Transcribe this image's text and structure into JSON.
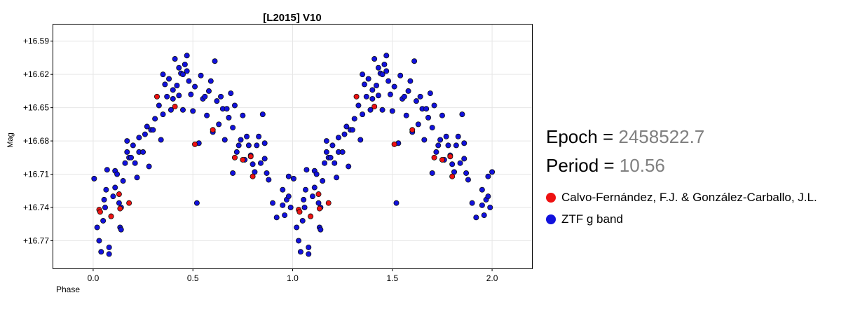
{
  "chart_data": {
    "type": "scatter",
    "title": "[L2015] V10",
    "xlabel": "Phase",
    "ylabel": "Mag",
    "xlim": [
      -0.2,
      2.2
    ],
    "ylim": [
      16.795,
      16.575
    ],
    "y_inverted": true,
    "grid": true,
    "x_ticks": [
      0.0,
      0.5,
      1.0,
      1.5,
      2.0
    ],
    "x_tick_labels": [
      "0.0",
      "0.5",
      "1.0",
      "1.5",
      "2.0"
    ],
    "y_ticks": [
      16.59,
      16.62,
      16.65,
      16.68,
      16.71,
      16.74,
      16.77
    ],
    "y_tick_labels": [
      "+16.59",
      "+16.62",
      "+16.65",
      "+16.68",
      "+16.71",
      "+16.74",
      "+16.77"
    ],
    "legend_position": "right",
    "series": [
      {
        "name": "Calvo-Fernández, F.J. & González-Carballo, J.L.",
        "color": "#ee1111",
        "points": [
          [
            0.03,
            16.742
          ],
          [
            0.035,
            16.744
          ],
          [
            0.09,
            16.748
          ],
          [
            0.13,
            16.728
          ],
          [
            0.135,
            16.741
          ],
          [
            0.18,
            16.736
          ],
          [
            0.32,
            16.64
          ],
          [
            0.41,
            16.649
          ],
          [
            0.51,
            16.683
          ],
          [
            0.6,
            16.67
          ],
          [
            0.71,
            16.695
          ],
          [
            0.75,
            16.697
          ],
          [
            0.79,
            16.694
          ],
          [
            0.8,
            16.712
          ],
          [
            1.03,
            16.742
          ],
          [
            1.035,
            16.744
          ],
          [
            1.09,
            16.748
          ],
          [
            1.13,
            16.728
          ],
          [
            1.135,
            16.741
          ],
          [
            1.18,
            16.736
          ],
          [
            1.32,
            16.64
          ],
          [
            1.41,
            16.649
          ],
          [
            1.51,
            16.683
          ],
          [
            1.6,
            16.67
          ],
          [
            1.71,
            16.695
          ],
          [
            1.75,
            16.697
          ],
          [
            1.79,
            16.694
          ],
          [
            1.8,
            16.712
          ]
        ]
      },
      {
        "name": "ZTF g band",
        "color": "#1111dd",
        "points": [
          [
            0.005,
            16.714
          ],
          [
            0.02,
            16.758
          ],
          [
            0.03,
            16.77
          ],
          [
            0.04,
            16.78
          ],
          [
            0.05,
            16.752
          ],
          [
            0.055,
            16.733
          ],
          [
            0.06,
            16.74
          ],
          [
            0.065,
            16.724
          ],
          [
            0.07,
            16.706
          ],
          [
            0.08,
            16.776
          ],
          [
            0.08,
            16.782
          ],
          [
            0.09,
            16.748
          ],
          [
            0.1,
            16.73
          ],
          [
            0.11,
            16.722
          ],
          [
            0.11,
            16.707
          ],
          [
            0.12,
            16.71
          ],
          [
            0.13,
            16.736
          ],
          [
            0.135,
            16.758
          ],
          [
            0.14,
            16.76
          ],
          [
            0.14,
            16.74
          ],
          [
            0.15,
            16.716
          ],
          [
            0.16,
            16.7
          ],
          [
            0.17,
            16.68
          ],
          [
            0.17,
            16.69
          ],
          [
            0.18,
            16.695
          ],
          [
            0.19,
            16.695
          ],
          [
            0.2,
            16.684
          ],
          [
            0.21,
            16.7
          ],
          [
            0.22,
            16.713
          ],
          [
            0.23,
            16.677
          ],
          [
            0.23,
            16.69
          ],
          [
            0.25,
            16.69
          ],
          [
            0.26,
            16.674
          ],
          [
            0.27,
            16.667
          ],
          [
            0.28,
            16.703
          ],
          [
            0.29,
            16.67
          ],
          [
            0.3,
            16.67
          ],
          [
            0.31,
            16.66
          ],
          [
            0.33,
            16.648
          ],
          [
            0.34,
            16.679
          ],
          [
            0.35,
            16.656
          ],
          [
            0.35,
            16.62
          ],
          [
            0.36,
            16.629
          ],
          [
            0.37,
            16.64
          ],
          [
            0.38,
            16.624
          ],
          [
            0.39,
            16.652
          ],
          [
            0.4,
            16.642
          ],
          [
            0.4,
            16.634
          ],
          [
            0.41,
            16.606
          ],
          [
            0.42,
            16.63
          ],
          [
            0.43,
            16.614
          ],
          [
            0.43,
            16.639
          ],
          [
            0.44,
            16.619
          ],
          [
            0.45,
            16.62
          ],
          [
            0.45,
            16.652
          ],
          [
            0.46,
            16.611
          ],
          [
            0.47,
            16.617
          ],
          [
            0.47,
            16.603
          ],
          [
            0.48,
            16.626
          ],
          [
            0.49,
            16.638
          ],
          [
            0.5,
            16.653
          ],
          [
            0.51,
            16.631
          ],
          [
            0.52,
            16.736
          ],
          [
            0.53,
            16.682
          ],
          [
            0.54,
            16.621
          ],
          [
            0.55,
            16.642
          ],
          [
            0.56,
            16.64
          ],
          [
            0.57,
            16.657
          ],
          [
            0.58,
            16.635
          ],
          [
            0.59,
            16.626
          ],
          [
            0.6,
            16.672
          ],
          [
            0.61,
            16.608
          ],
          [
            0.62,
            16.644
          ],
          [
            0.63,
            16.665
          ],
          [
            0.64,
            16.64
          ],
          [
            0.65,
            16.651
          ],
          [
            0.66,
            16.679
          ],
          [
            0.67,
            16.651
          ],
          [
            0.68,
            16.659
          ],
          [
            0.69,
            16.637
          ],
          [
            0.7,
            16.668
          ],
          [
            0.7,
            16.709
          ],
          [
            0.71,
            16.648
          ],
          [
            0.72,
            16.69
          ],
          [
            0.73,
            16.684
          ],
          [
            0.74,
            16.679
          ],
          [
            0.75,
            16.657
          ],
          [
            0.76,
            16.697
          ],
          [
            0.77,
            16.676
          ],
          [
            0.78,
            16.684
          ],
          [
            0.79,
            16.693
          ],
          [
            0.8,
            16.701
          ],
          [
            0.81,
            16.708
          ],
          [
            0.82,
            16.684
          ],
          [
            0.83,
            16.676
          ],
          [
            0.84,
            16.7
          ],
          [
            0.85,
            16.656
          ],
          [
            0.86,
            16.682
          ],
          [
            0.86,
            16.696
          ],
          [
            0.87,
            16.709
          ],
          [
            0.88,
            16.715
          ],
          [
            0.9,
            16.736
          ],
          [
            0.92,
            16.749
          ],
          [
            0.95,
            16.738
          ],
          [
            0.95,
            16.724
          ],
          [
            0.96,
            16.747
          ],
          [
            0.97,
            16.733
          ],
          [
            0.98,
            16.73
          ],
          [
            0.98,
            16.712
          ],
          [
            0.99,
            16.74
          ],
          [
            1.005,
            16.714
          ],
          [
            1.02,
            16.758
          ],
          [
            1.03,
            16.77
          ],
          [
            1.04,
            16.78
          ],
          [
            1.05,
            16.752
          ],
          [
            1.055,
            16.733
          ],
          [
            1.06,
            16.74
          ],
          [
            1.065,
            16.724
          ],
          [
            1.07,
            16.706
          ],
          [
            1.08,
            16.776
          ],
          [
            1.08,
            16.782
          ],
          [
            1.09,
            16.748
          ],
          [
            1.1,
            16.73
          ],
          [
            1.11,
            16.722
          ],
          [
            1.11,
            16.707
          ],
          [
            1.12,
            16.71
          ],
          [
            1.13,
            16.736
          ],
          [
            1.135,
            16.758
          ],
          [
            1.14,
            16.76
          ],
          [
            1.14,
            16.74
          ],
          [
            1.15,
            16.716
          ],
          [
            1.16,
            16.7
          ],
          [
            1.17,
            16.68
          ],
          [
            1.17,
            16.69
          ],
          [
            1.18,
            16.695
          ],
          [
            1.19,
            16.695
          ],
          [
            1.2,
            16.684
          ],
          [
            1.21,
            16.7
          ],
          [
            1.22,
            16.713
          ],
          [
            1.23,
            16.677
          ],
          [
            1.23,
            16.69
          ],
          [
            1.25,
            16.69
          ],
          [
            1.26,
            16.674
          ],
          [
            1.27,
            16.667
          ],
          [
            1.28,
            16.703
          ],
          [
            1.29,
            16.67
          ],
          [
            1.3,
            16.67
          ],
          [
            1.31,
            16.66
          ],
          [
            1.33,
            16.648
          ],
          [
            1.34,
            16.679
          ],
          [
            1.35,
            16.656
          ],
          [
            1.35,
            16.62
          ],
          [
            1.36,
            16.629
          ],
          [
            1.37,
            16.64
          ],
          [
            1.38,
            16.624
          ],
          [
            1.39,
            16.652
          ],
          [
            1.4,
            16.642
          ],
          [
            1.4,
            16.634
          ],
          [
            1.41,
            16.606
          ],
          [
            1.42,
            16.63
          ],
          [
            1.43,
            16.614
          ],
          [
            1.43,
            16.639
          ],
          [
            1.44,
            16.619
          ],
          [
            1.45,
            16.62
          ],
          [
            1.45,
            16.652
          ],
          [
            1.46,
            16.611
          ],
          [
            1.47,
            16.617
          ],
          [
            1.47,
            16.603
          ],
          [
            1.48,
            16.626
          ],
          [
            1.49,
            16.638
          ],
          [
            1.5,
            16.653
          ],
          [
            1.51,
            16.631
          ],
          [
            1.52,
            16.736
          ],
          [
            1.53,
            16.682
          ],
          [
            1.54,
            16.621
          ],
          [
            1.55,
            16.642
          ],
          [
            1.56,
            16.64
          ],
          [
            1.57,
            16.657
          ],
          [
            1.58,
            16.635
          ],
          [
            1.59,
            16.626
          ],
          [
            1.6,
            16.672
          ],
          [
            1.61,
            16.608
          ],
          [
            1.62,
            16.644
          ],
          [
            1.63,
            16.665
          ],
          [
            1.64,
            16.64
          ],
          [
            1.65,
            16.651
          ],
          [
            1.66,
            16.679
          ],
          [
            1.67,
            16.651
          ],
          [
            1.68,
            16.659
          ],
          [
            1.69,
            16.637
          ],
          [
            1.7,
            16.668
          ],
          [
            1.7,
            16.709
          ],
          [
            1.71,
            16.648
          ],
          [
            1.72,
            16.69
          ],
          [
            1.73,
            16.684
          ],
          [
            1.74,
            16.679
          ],
          [
            1.75,
            16.657
          ],
          [
            1.76,
            16.697
          ],
          [
            1.77,
            16.676
          ],
          [
            1.78,
            16.684
          ],
          [
            1.79,
            16.693
          ],
          [
            1.8,
            16.701
          ],
          [
            1.81,
            16.708
          ],
          [
            1.82,
            16.684
          ],
          [
            1.83,
            16.676
          ],
          [
            1.84,
            16.7
          ],
          [
            1.85,
            16.656
          ],
          [
            1.86,
            16.682
          ],
          [
            1.86,
            16.696
          ],
          [
            1.87,
            16.709
          ],
          [
            1.88,
            16.715
          ],
          [
            1.9,
            16.736
          ],
          [
            1.92,
            16.749
          ],
          [
            1.95,
            16.738
          ],
          [
            1.95,
            16.724
          ],
          [
            1.96,
            16.747
          ],
          [
            1.97,
            16.733
          ],
          [
            1.98,
            16.73
          ],
          [
            1.98,
            16.712
          ],
          [
            1.99,
            16.74
          ],
          [
            2.0,
            16.708
          ]
        ]
      }
    ]
  },
  "info": {
    "epoch_label": "Epoch = ",
    "epoch_value": "2458522.7",
    "period_label": "Period = ",
    "period_value": "10.56"
  },
  "colors": {
    "grid": "#e6e6e6",
    "text_value": "#808080"
  }
}
